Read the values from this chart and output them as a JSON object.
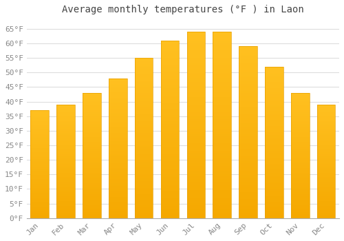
{
  "title": "Average monthly temperatures (°F ) in Laon",
  "months": [
    "Jan",
    "Feb",
    "Mar",
    "Apr",
    "May",
    "Jun",
    "Jul",
    "Aug",
    "Sep",
    "Oct",
    "Nov",
    "Dec"
  ],
  "values": [
    37,
    39,
    43,
    48,
    55,
    61,
    64,
    64,
    59,
    52,
    43,
    39
  ],
  "bar_color_top": "#FFC020",
  "bar_color_bottom": "#F5A800",
  "background_color": "#FFFFFF",
  "plot_bg_color": "#FFFFFF",
  "grid_color": "#DDDDDD",
  "ylim": [
    0,
    68
  ],
  "yticks": [
    0,
    5,
    10,
    15,
    20,
    25,
    30,
    35,
    40,
    45,
    50,
    55,
    60,
    65
  ],
  "ytick_labels": [
    "0°F",
    "5°F",
    "10°F",
    "15°F",
    "20°F",
    "25°F",
    "30°F",
    "35°F",
    "40°F",
    "45°F",
    "50°F",
    "55°F",
    "60°F",
    "65°F"
  ],
  "title_fontsize": 10,
  "tick_fontsize": 8,
  "tick_color": "#888888",
  "title_color": "#444444",
  "font_family": "monospace",
  "bar_width": 0.7
}
